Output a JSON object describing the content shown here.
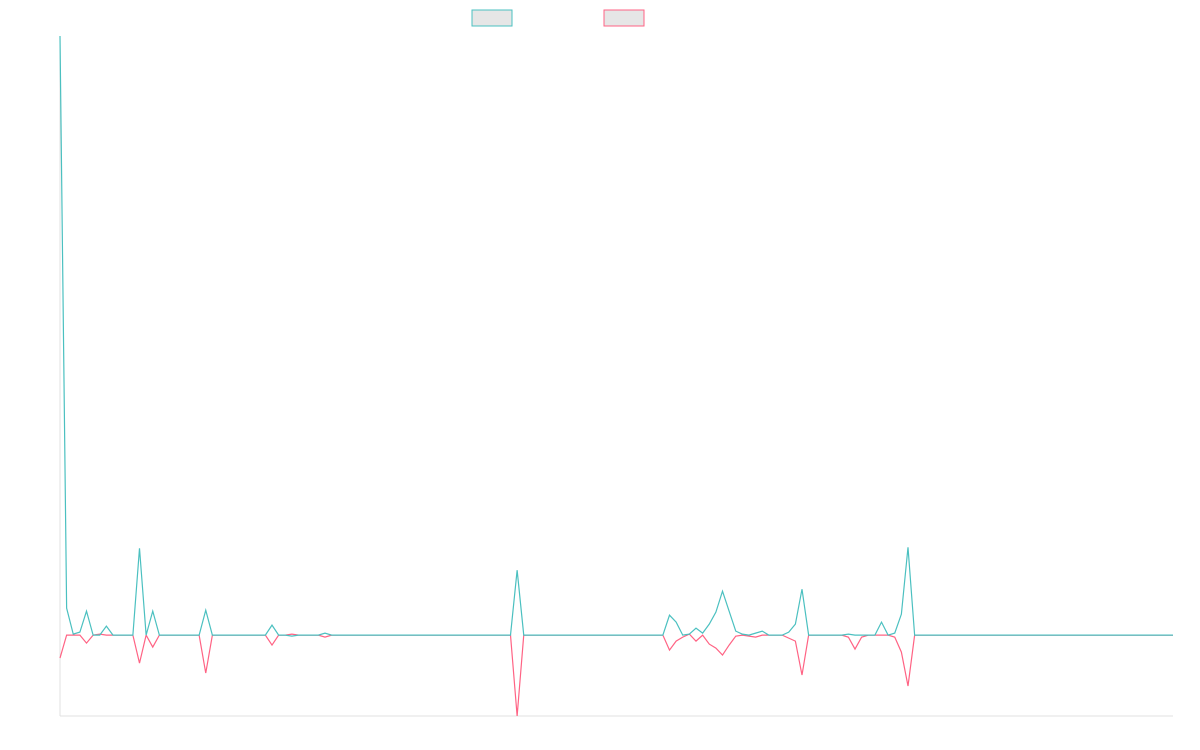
{
  "chart_data": {
    "type": "line",
    "categories": [
      null,
      null,
      null,
      null,
      null,
      null,
      null,
      null,
      null,
      null,
      null,
      null,
      null,
      null,
      null,
      null,
      null,
      null,
      null,
      null,
      null,
      null,
      null,
      null,
      null,
      null,
      null,
      null,
      null,
      null,
      null,
      null,
      null,
      null,
      null,
      null,
      null,
      null,
      null,
      null,
      null,
      null,
      null,
      null,
      null,
      null,
      null,
      null,
      null,
      null,
      null,
      null,
      null,
      null,
      null,
      null,
      null,
      null,
      null,
      null,
      null,
      null,
      null,
      null,
      null,
      null,
      null,
      null,
      null,
      null,
      null,
      null,
      null,
      null,
      null,
      null,
      null,
      null,
      null,
      null,
      null,
      null,
      null,
      null,
      null,
      null,
      null,
      null,
      null,
      null,
      null,
      null,
      null,
      null,
      null,
      null,
      null,
      null,
      null,
      null,
      null,
      null,
      null,
      null,
      null,
      null,
      null,
      null,
      null,
      null,
      null,
      null,
      null,
      null,
      null,
      null,
      null,
      null,
      null,
      null,
      null,
      null,
      null,
      null,
      null,
      null,
      null,
      null,
      null,
      null,
      null,
      null,
      null,
      null,
      null,
      null,
      null,
      null,
      null,
      null,
      null,
      null,
      null,
      null,
      null,
      null,
      null,
      null,
      null,
      null,
      null,
      null,
      null,
      null,
      null,
      null,
      null,
      null,
      null,
      null,
      null,
      null,
      null,
      null,
      null,
      null,
      null,
      null,
      null
    ],
    "series": [
      {
        "color": "#4bc0c0",
        "values": [
          600,
          27,
          1,
          3,
          24,
          0,
          0,
          9,
          0,
          0,
          0,
          0,
          87,
          0,
          24,
          0,
          0,
          0,
          0,
          0,
          0,
          0,
          25,
          0,
          0,
          0,
          0,
          0,
          0,
          0,
          0,
          0,
          10,
          0,
          0,
          -1,
          0,
          0,
          0,
          0,
          2,
          0,
          0,
          0,
          0,
          0,
          0,
          0,
          0,
          0,
          0,
          0,
          0,
          0,
          0,
          0,
          0,
          0,
          0,
          0,
          0,
          0,
          0,
          0,
          0,
          0,
          0,
          0,
          0,
          65,
          0,
          0,
          0,
          0,
          0,
          0,
          0,
          0,
          0,
          0,
          0,
          0,
          0,
          0,
          0,
          0,
          0,
          0,
          0,
          0,
          0,
          0,
          20,
          13,
          0,
          1,
          7,
          2,
          11,
          23,
          44,
          24,
          4,
          1,
          0,
          2,
          4,
          0,
          0,
          0,
          3,
          11,
          46,
          0,
          0,
          0,
          0,
          0,
          0,
          1,
          0,
          0,
          0,
          0,
          13,
          0,
          2,
          21,
          88,
          0,
          0,
          0,
          0,
          0,
          0,
          0,
          0,
          0,
          0,
          0,
          0,
          0,
          0,
          0,
          0,
          0,
          0,
          0,
          0,
          0,
          0,
          0,
          0,
          0,
          0,
          0,
          0,
          0,
          0,
          0,
          0,
          0,
          0,
          0,
          0,
          0,
          0,
          0,
          0
        ]
      },
      {
        "color": "#ff6384",
        "values": [
          -23,
          0,
          0,
          0,
          -8,
          0,
          1,
          0,
          0,
          0,
          0,
          0,
          -28,
          0,
          -12,
          0,
          0,
          0,
          0,
          0,
          0,
          0,
          -38,
          0,
          0,
          0,
          0,
          0,
          0,
          0,
          0,
          0,
          -10,
          0,
          0,
          1,
          0,
          0,
          0,
          0,
          -2,
          0,
          0,
          0,
          0,
          0,
          0,
          0,
          0,
          0,
          0,
          0,
          0,
          0,
          0,
          0,
          0,
          0,
          0,
          0,
          0,
          0,
          0,
          0,
          0,
          0,
          0,
          0,
          0,
          -81,
          0,
          0,
          0,
          0,
          0,
          0,
          0,
          0,
          0,
          0,
          0,
          0,
          0,
          0,
          0,
          0,
          0,
          0,
          0,
          0,
          0,
          0,
          -15,
          -6,
          -2,
          1,
          -6,
          0,
          -9,
          -13,
          -20,
          -10,
          -1,
          0,
          -1,
          -2,
          0,
          0,
          0,
          0,
          -3,
          -6,
          -40,
          0,
          0,
          0,
          0,
          0,
          0,
          -2,
          -14,
          -2,
          0,
          0,
          0,
          0,
          -2,
          -17,
          -51,
          0,
          0,
          0,
          0,
          0,
          0,
          0,
          0,
          0,
          0,
          0,
          0,
          0,
          0,
          0,
          0,
          0,
          0,
          0,
          0,
          0,
          0,
          0,
          0,
          0,
          0,
          0,
          0,
          0,
          0,
          0,
          0,
          0,
          0,
          0,
          0,
          0,
          0,
          0,
          0
        ]
      }
    ],
    "ylim": [
      -81,
      600
    ]
  }
}
